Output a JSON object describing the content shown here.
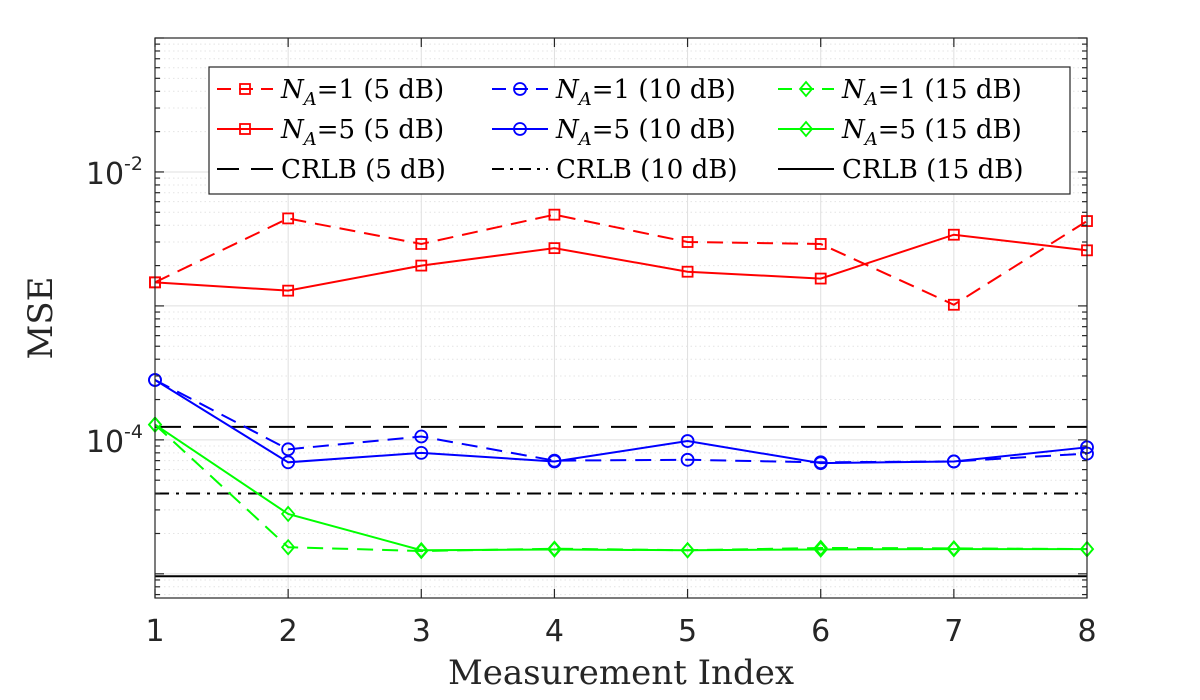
{
  "chart_data": {
    "type": "line",
    "xlabel": "Measurement Index",
    "ylabel": "MSE",
    "x": [
      1,
      2,
      3,
      4,
      5,
      6,
      7,
      8
    ],
    "xlim": [
      1,
      8
    ],
    "xticks": [
      1,
      2,
      3,
      4,
      5,
      6,
      7,
      8
    ],
    "ylim": [
      6.6e-06,
      0.1
    ],
    "yscale": "log",
    "yticks": [
      {
        "value": 0.01,
        "base": "10",
        "exp": "-2"
      },
      {
        "value": 0.0001,
        "base": "10",
        "exp": "-4"
      }
    ],
    "grid": true,
    "legend_position": "top",
    "series": [
      {
        "name": "N_A=1 (5 dB)",
        "legend": {
          "prefix": "N",
          "sub": "A",
          "suffix": "=1 (5 dB)"
        },
        "color": "#ff0000",
        "dash": "dashed",
        "marker": "square",
        "values": [
          0.0015,
          0.0045,
          0.0029,
          0.0048,
          0.003,
          0.0029,
          0.00102,
          0.0043
        ]
      },
      {
        "name": "N_A=5 (5 dB)",
        "legend": {
          "prefix": "N",
          "sub": "A",
          "suffix": "=5 (5 dB)"
        },
        "color": "#ff0000",
        "dash": "solid",
        "marker": "square",
        "values": [
          0.0015,
          0.0013,
          0.002,
          0.0027,
          0.0018,
          0.0016,
          0.0034,
          0.0026
        ]
      },
      {
        "name": "N_A=1 (10 dB)",
        "legend": {
          "prefix": "N",
          "sub": "A",
          "suffix": "=1 (10 dB)"
        },
        "color": "#0000ff",
        "dash": "dashed",
        "marker": "circle",
        "values": [
          0.00028,
          8.5e-05,
          0.000106,
          7e-05,
          7.1e-05,
          6.8e-05,
          6.9e-05,
          7.9e-05
        ]
      },
      {
        "name": "N_A=5 (10 dB)",
        "legend": {
          "prefix": "N",
          "sub": "A",
          "suffix": "=5 (10 dB)"
        },
        "color": "#0000ff",
        "dash": "solid",
        "marker": "circle",
        "values": [
          0.00028,
          6.8e-05,
          8e-05,
          6.9e-05,
          9.8e-05,
          6.7e-05,
          6.9e-05,
          8.8e-05
        ]
      },
      {
        "name": "N_A=1 (15 dB)",
        "legend": {
          "prefix": "N",
          "sub": "A",
          "suffix": "=1 (15 dB)"
        },
        "color": "#00ff00",
        "dash": "dashed",
        "marker": "diamond",
        "values": [
          0.00013,
          1.58e-05,
          1.48e-05,
          1.54e-05,
          1.5e-05,
          1.56e-05,
          1.55e-05,
          1.53e-05
        ]
      },
      {
        "name": "N_A=5 (15 dB)",
        "legend": {
          "prefix": "N",
          "sub": "A",
          "suffix": "=5 (15 dB)"
        },
        "color": "#00ff00",
        "dash": "solid",
        "marker": "diamond",
        "values": [
          0.00013,
          2.8e-05,
          1.5e-05,
          1.52e-05,
          1.5e-05,
          1.52e-05,
          1.53e-05,
          1.53e-05
        ]
      },
      {
        "name": "CRLB (5 dB)",
        "legend": {
          "prefix": "",
          "sub": "",
          "suffix": "CRLB (5 dB)"
        },
        "color": "#000000",
        "dash": "longdash",
        "marker": "none",
        "values": [
          0.000125,
          0.000125,
          0.000125,
          0.000125,
          0.000125,
          0.000125,
          0.000125,
          0.000125
        ]
      },
      {
        "name": "CRLB (10 dB)",
        "legend": {
          "prefix": "",
          "sub": "",
          "suffix": "CRLB (10 dB)"
        },
        "color": "#000000",
        "dash": "dashdot",
        "marker": "none",
        "values": [
          3.98e-05,
          3.98e-05,
          3.98e-05,
          3.98e-05,
          3.98e-05,
          3.98e-05,
          3.98e-05,
          3.98e-05
        ]
      },
      {
        "name": "CRLB (15 dB)",
        "legend": {
          "prefix": "",
          "sub": "",
          "suffix": "CRLB (15 dB)"
        },
        "color": "#000000",
        "dash": "solid",
        "marker": "none",
        "values": [
          9.6e-06,
          9.6e-06,
          9.6e-06,
          9.6e-06,
          9.6e-06,
          9.6e-06,
          9.6e-06,
          9.6e-06
        ]
      }
    ]
  }
}
